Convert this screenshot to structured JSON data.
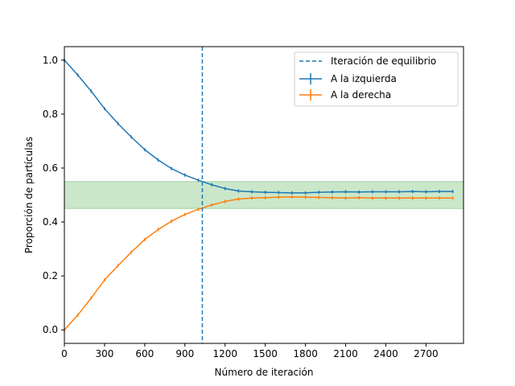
{
  "chart_data": {
    "type": "line",
    "xlabel": "Número de iteración",
    "ylabel": "Proporción de partículas",
    "xlim": [
      0,
      2980
    ],
    "ylim": [
      -0.05,
      1.05
    ],
    "xticks": [
      0,
      300,
      600,
      900,
      1200,
      1500,
      1800,
      2100,
      2400,
      2700
    ],
    "yticks": [
      0.0,
      0.2,
      0.4,
      0.6,
      0.8,
      1.0
    ],
    "ytick_labels": [
      "0.0",
      "0.2",
      "0.4",
      "0.6",
      "0.8",
      "1.0"
    ],
    "x": [
      0,
      100,
      200,
      300,
      400,
      500,
      600,
      700,
      800,
      900,
      1000,
      1100,
      1200,
      1300,
      1400,
      1500,
      1600,
      1700,
      1800,
      1900,
      2000,
      2100,
      2200,
      2300,
      2400,
      2500,
      2600,
      2700,
      2800,
      2900
    ],
    "series": [
      {
        "name": "A la izquierda",
        "color": "#1f77b4",
        "values": [
          1.0,
          0.945,
          0.885,
          0.82,
          0.765,
          0.715,
          0.668,
          0.63,
          0.598,
          0.574,
          0.555,
          0.538,
          0.524,
          0.515,
          0.512,
          0.51,
          0.509,
          0.508,
          0.508,
          0.51,
          0.511,
          0.512,
          0.511,
          0.512,
          0.512,
          0.512,
          0.513,
          0.512,
          0.513,
          0.513
        ],
        "error": 0.006
      },
      {
        "name": "A la derecha",
        "color": "#ff7f0e",
        "values": [
          0.0,
          0.055,
          0.118,
          0.185,
          0.238,
          0.288,
          0.335,
          0.372,
          0.403,
          0.428,
          0.447,
          0.463,
          0.476,
          0.485,
          0.489,
          0.49,
          0.492,
          0.493,
          0.492,
          0.491,
          0.49,
          0.489,
          0.49,
          0.489,
          0.489,
          0.489,
          0.489,
          0.489,
          0.489,
          0.489
        ],
        "error": 0.006
      }
    ],
    "equilibrium": {
      "name": "Iteración de equilibrio",
      "x": 1030,
      "color": "#1f77b4"
    },
    "band": {
      "y_low": 0.45,
      "y_high": 0.55,
      "color": "#2ca02c"
    },
    "legend_placement": "top-right",
    "grid": false
  }
}
